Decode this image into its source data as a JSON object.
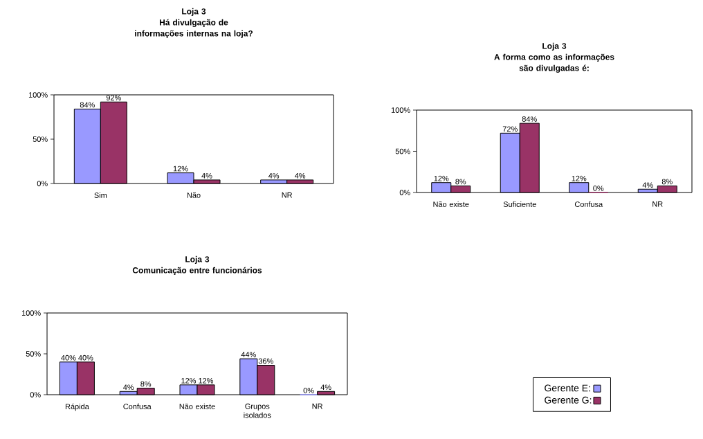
{
  "chart_data": [
    {
      "type": "bar",
      "title": "Loja 3",
      "subtitle": "Há divulgação de informações internas na loja?",
      "categories": [
        "Sim",
        "Não",
        "NR"
      ],
      "ylim": [
        0,
        100
      ],
      "yticks": [
        {
          "value": 0,
          "label": "0%"
        },
        {
          "value": 50,
          "label": "50%"
        },
        {
          "value": 100,
          "label": "100%"
        }
      ],
      "series": [
        {
          "color": "#9999ff",
          "values": [
            84,
            12,
            4
          ],
          "value_labels": [
            "84%",
            "12%",
            "4%"
          ]
        },
        {
          "color": "#993366",
          "values": [
            92,
            4,
            4
          ],
          "value_labels": [
            "92%",
            "4%",
            "4%"
          ]
        }
      ]
    },
    {
      "type": "bar",
      "title": "Loja 3",
      "subtitle": "A forma como as informações são divulgadas é:",
      "categories": [
        "Não existe",
        "Suficiente",
        "Confusa",
        "NR"
      ],
      "ylim": [
        0,
        100
      ],
      "yticks": [
        {
          "value": 0,
          "label": "0%"
        },
        {
          "value": 50,
          "label": "50%"
        },
        {
          "value": 100,
          "label": "100%"
        }
      ],
      "series": [
        {
          "color": "#9999ff",
          "values": [
            12,
            72,
            12,
            4
          ],
          "value_labels": [
            "12%",
            "72%",
            "12%",
            "4%"
          ]
        },
        {
          "color": "#993366",
          "values": [
            8,
            84,
            0,
            8
          ],
          "value_labels": [
            "8%",
            "84%",
            "0%",
            "8%"
          ]
        }
      ]
    },
    {
      "type": "bar",
      "title": "Loja 3",
      "subtitle": "Comunicação entre funcionários",
      "categories": [
        "Rápida",
        "Confusa",
        "Não existe",
        "Grupos isolados",
        "NR"
      ],
      "ylim": [
        0,
        100
      ],
      "yticks": [
        {
          "value": 0,
          "label": "0%"
        },
        {
          "value": 50,
          "label": "50%"
        },
        {
          "value": 100,
          "label": "100%"
        }
      ],
      "legend": "right",
      "series": [
        {
          "name": "Gerente E:",
          "color": "#9999ff",
          "values": [
            40,
            4,
            12,
            44,
            0
          ],
          "value_labels": [
            "40%",
            "4%",
            "12%",
            "44%",
            "0%"
          ]
        },
        {
          "name": "Gerente G:",
          "color": "#993366",
          "values": [
            40,
            8,
            12,
            36,
            4
          ],
          "value_labels": [
            "40%",
            "8%",
            "12%",
            "36%",
            "4%"
          ]
        }
      ]
    }
  ]
}
